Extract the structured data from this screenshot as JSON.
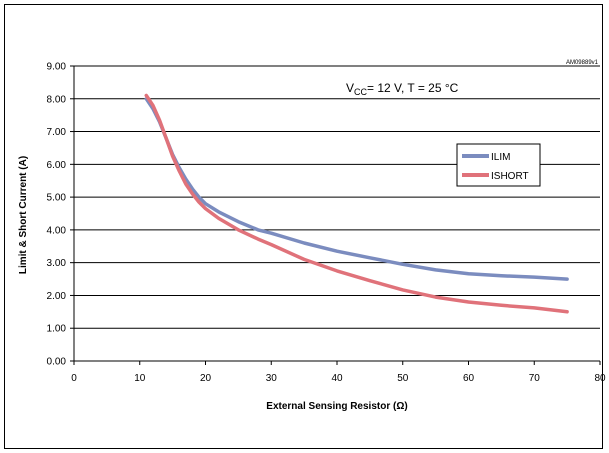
{
  "figure_code": "AM09889v1",
  "chart_data": {
    "type": "line",
    "title": "",
    "annotation": {
      "prefix": "V",
      "sub": "CC",
      "suffix": "= 12 V, T = 25 °C"
    },
    "xlabel": "External Sensing Resistor (Ω)",
    "ylabel": "Limit & Short Current (A)",
    "xlim": [
      0,
      80
    ],
    "ylim": [
      0,
      9
    ],
    "x_ticks": [
      "0",
      "10",
      "20",
      "30",
      "40",
      "50",
      "60",
      "70",
      "80"
    ],
    "y_ticks": [
      "0.00",
      "1.00",
      "2.00",
      "3.00",
      "4.00",
      "5.00",
      "6.00",
      "7.00",
      "8.00",
      "9.00"
    ],
    "grid": "horizontal",
    "legend_position": "right",
    "series": [
      {
        "name": "ILIM",
        "color": "#7b8cbf",
        "x": [
          11,
          12,
          13,
          14,
          15,
          16,
          17,
          18,
          19,
          20,
          22,
          25,
          28,
          30,
          35,
          40,
          45,
          50,
          55,
          60,
          65,
          70,
          75
        ],
        "y": [
          8.0,
          7.7,
          7.3,
          6.8,
          6.3,
          5.9,
          5.55,
          5.25,
          5.0,
          4.8,
          4.55,
          4.25,
          4.0,
          3.9,
          3.6,
          3.35,
          3.15,
          2.95,
          2.78,
          2.66,
          2.6,
          2.56,
          2.5
        ]
      },
      {
        "name": "ISHORT",
        "color": "#e0727a",
        "x": [
          11,
          12,
          13,
          14,
          15,
          16,
          17,
          18,
          19,
          20,
          22,
          25,
          28,
          30,
          35,
          40,
          45,
          50,
          55,
          60,
          65,
          70,
          75
        ],
        "y": [
          8.1,
          7.8,
          7.35,
          6.8,
          6.25,
          5.8,
          5.4,
          5.1,
          4.85,
          4.65,
          4.35,
          4.0,
          3.72,
          3.55,
          3.1,
          2.75,
          2.45,
          2.17,
          1.95,
          1.8,
          1.7,
          1.62,
          1.5
        ]
      }
    ]
  }
}
